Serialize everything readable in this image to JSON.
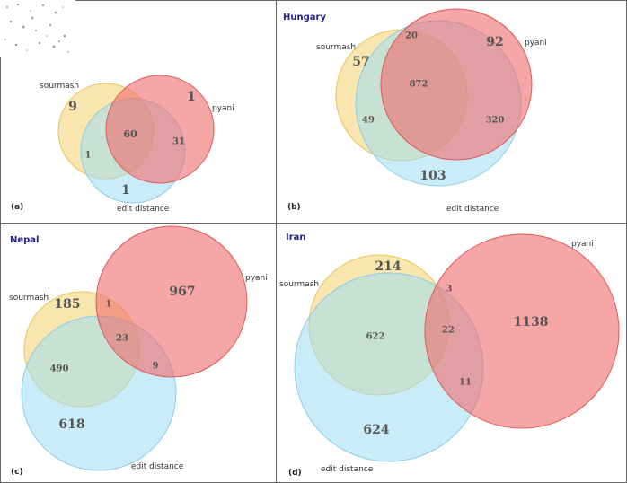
{
  "colors": {
    "sourmash": "#f5d57a",
    "pyani": "#f06a6a",
    "edit_distance": "#9fdcf3",
    "frame": "#666666",
    "title": "#1f1f8c"
  },
  "chart_data": [
    {
      "type": "venn",
      "panel_label": "(a)",
      "title": "",
      "set_labels": {
        "sourmash": "sourmash",
        "pyani": "pyani",
        "edit_distance": "edit distance"
      },
      "regions": {
        "sourmash_only": 9,
        "pyani_only": 1,
        "edit_distance_only": 1,
        "sourmash_pyani": "",
        "sourmash_edit": 1,
        "pyani_edit": 31,
        "all_three": 60
      }
    },
    {
      "type": "venn",
      "panel_label": "(b)",
      "title": "Hungary",
      "set_labels": {
        "sourmash": "sourmash",
        "pyani": "pyani",
        "edit_distance": "edit distance"
      },
      "regions": {
        "sourmash_only": 57,
        "pyani_only": 92,
        "edit_distance_only": 103,
        "sourmash_pyani": 20,
        "sourmash_edit": 49,
        "pyani_edit": 320,
        "all_three": 872
      }
    },
    {
      "type": "venn",
      "panel_label": "(c)",
      "title": "Nepal",
      "set_labels": {
        "sourmash": "sourmash",
        "pyani": "pyani",
        "edit_distance": "edit distance"
      },
      "regions": {
        "sourmash_only": 185,
        "pyani_only": 967,
        "edit_distance_only": 618,
        "sourmash_pyani": 1,
        "sourmash_edit": 490,
        "pyani_edit": 9,
        "all_three": 23
      }
    },
    {
      "type": "venn",
      "panel_label": "(d)",
      "title": "Iran",
      "set_labels": {
        "sourmash": "sourmash",
        "pyani": "pyani",
        "edit_distance": "edit distance"
      },
      "regions": {
        "sourmash_only": 214,
        "pyani_only": 1138,
        "edit_distance_only": 624,
        "sourmash_pyani": 3,
        "sourmash_edit": 622,
        "pyani_edit": 11,
        "all_three": 22
      }
    }
  ]
}
